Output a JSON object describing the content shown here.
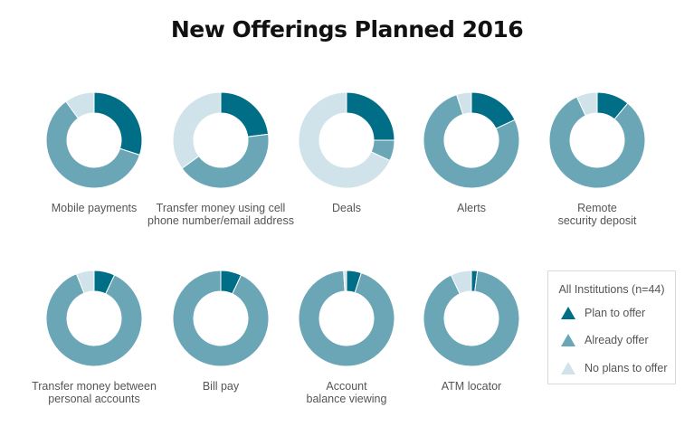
{
  "title": "New Offerings Planned 2016",
  "colors": {
    "plan_to_offer": "#006e87",
    "already_offer": "#6aa6b6",
    "no_plans": "#d0e3ea"
  },
  "legend": {
    "title": "All Institutions (n=44)",
    "items": [
      {
        "label": "Plan to offer",
        "key": "plan_to_offer"
      },
      {
        "label": "Already offer",
        "key": "already_offer"
      },
      {
        "label": "No plans to offer",
        "key": "no_plans"
      }
    ]
  },
  "chart_data": {
    "type": "pie",
    "variant": "donut",
    "title": "New Offerings Planned 2016",
    "series_names": [
      "Plan to offer",
      "Already offer",
      "No plans to offer"
    ],
    "units": "percent of institutions",
    "charts": [
      {
        "label": "Mobile payments",
        "lines": [
          "Mobile payments"
        ],
        "values": [
          30,
          60,
          10
        ]
      },
      {
        "label": "Transfer money using cell phone number/email address",
        "lines": [
          "Transfer money using cell",
          "phone number/email address"
        ],
        "values": [
          23,
          42,
          35
        ]
      },
      {
        "label": "Deals",
        "lines": [
          "Deals"
        ],
        "values": [
          25,
          7,
          68
        ]
      },
      {
        "label": "Alerts",
        "lines": [
          "Alerts"
        ],
        "values": [
          18,
          77,
          5
        ]
      },
      {
        "label": "Remote security deposit",
        "lines": [
          "Remote",
          "security deposit"
        ],
        "values": [
          11,
          82,
          7
        ]
      },
      {
        "label": "Transfer money between personal accounts",
        "lines": [
          "Transfer money between",
          "personal accounts"
        ],
        "values": [
          7,
          87,
          6
        ]
      },
      {
        "label": "Bill pay",
        "lines": [
          "Bill pay"
        ],
        "values": [
          7,
          93,
          0
        ]
      },
      {
        "label": "Account balance viewing",
        "lines": [
          "Account",
          "balance viewing"
        ],
        "values": [
          5,
          94,
          1
        ]
      },
      {
        "label": "ATM locator",
        "lines": [
          "ATM locator"
        ],
        "values": [
          2,
          91,
          7
        ]
      }
    ]
  }
}
